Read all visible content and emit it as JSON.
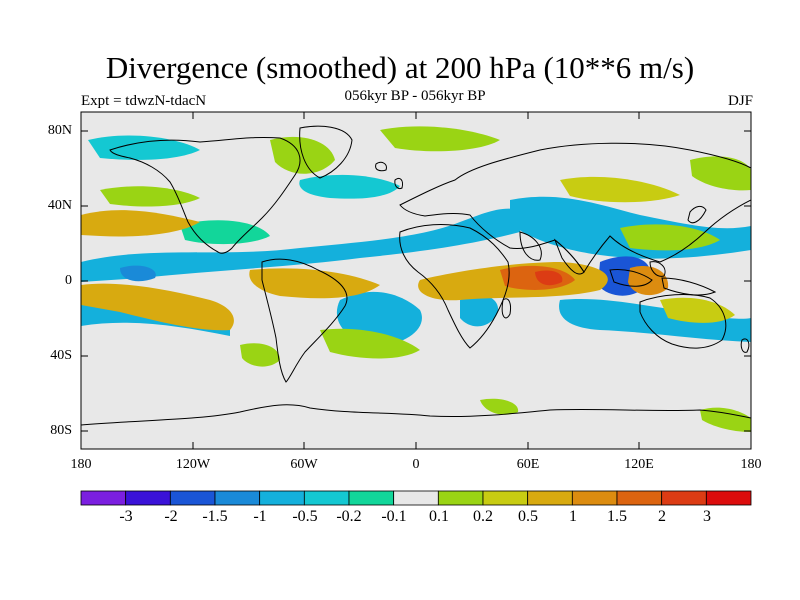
{
  "title": "Divergence (smoothed) at 200 hPa (10**6 m/s)",
  "experiment": "Expt = tdwzN-tdacN",
  "period": "056kyr BP - 056kyr BP",
  "season": "DJF",
  "latitude_ticks": [
    "80N",
    "40N",
    "0",
    "40S",
    "80S"
  ],
  "longitude_ticks": [
    "180",
    "120W",
    "60W",
    "0",
    "60E",
    "120E",
    "180"
  ],
  "colorbar": {
    "labels": [
      "-3",
      "-2",
      "-1.5",
      "-1",
      "-0.5",
      "-0.2",
      "-0.1",
      "0.1",
      "0.2",
      "0.5",
      "1",
      "1.5",
      "2",
      "3"
    ],
    "colors": [
      "#7b1fe0",
      "#3a12d8",
      "#1a55d6",
      "#1a8ad8",
      "#14b0dc",
      "#14c8d2",
      "#12d69a",
      "#e8e8e8",
      "#9ad414",
      "#c8cc12",
      "#d8aa10",
      "#dc8c10",
      "#dc6410",
      "#dc3c14",
      "#dc0c0c"
    ]
  },
  "colors": {
    "ocean_background": "#e8e8e8",
    "coastline": "#000000"
  }
}
